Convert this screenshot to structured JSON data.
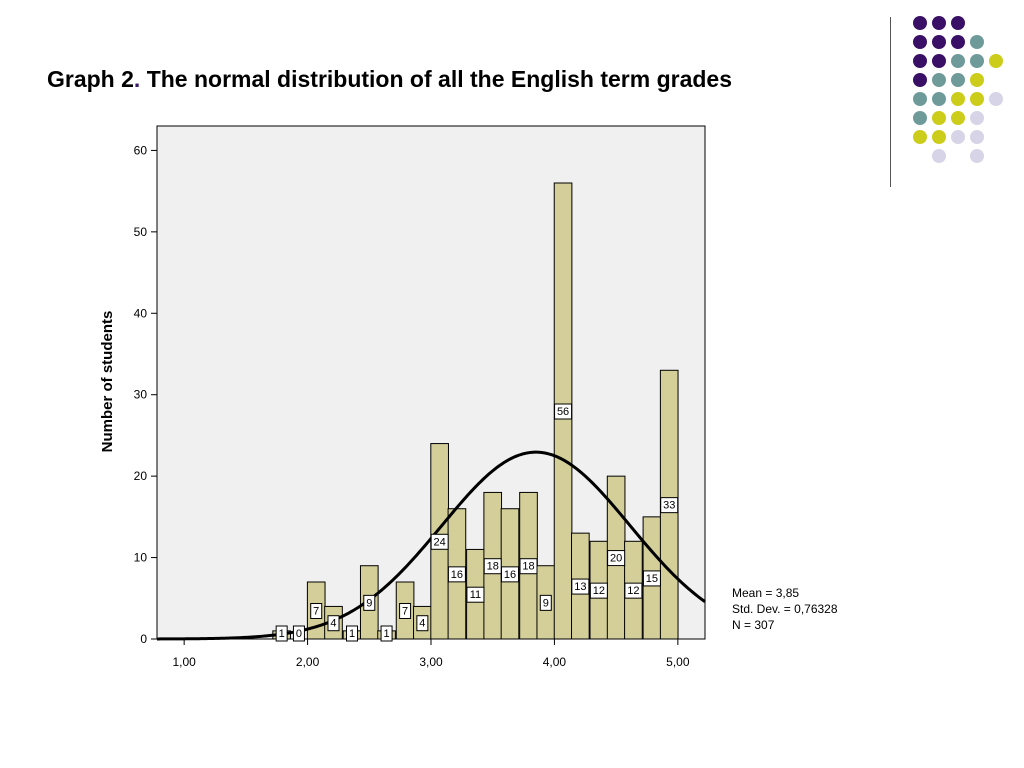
{
  "title": {
    "prefix": "Graph 2",
    "dot": ".",
    "text": " The normal distribution of all the English term grades"
  },
  "decoration": {
    "colors": {
      "purple": "#3a0f66",
      "teal": "#6f9a9a",
      "yellow": "#cccc1a",
      "lavender": "#d6d4e6"
    },
    "dot_grid": [
      [
        "purple",
        "purple",
        "purple",
        null,
        null
      ],
      [
        "purple",
        "purple",
        "purple",
        "teal",
        null
      ],
      [
        "purple",
        "purple",
        "teal",
        "teal",
        "yellow"
      ],
      [
        "purple",
        "teal",
        "teal",
        "yellow",
        null
      ],
      [
        "teal",
        "teal",
        "yellow",
        "yellow",
        "lavender"
      ],
      [
        "teal",
        "yellow",
        "yellow",
        "lavender",
        null
      ],
      [
        "yellow",
        "yellow",
        "lavender",
        "lavender",
        null
      ],
      [
        null,
        "lavender",
        null,
        "lavender",
        null
      ]
    ]
  },
  "chart_data": {
    "type": "bar",
    "subtype": "histogram with normal curve",
    "ylabel": "Number of students",
    "xlabel": "",
    "xlim": [
      0.78,
      5.22
    ],
    "ylim": [
      0,
      63
    ],
    "x_ticks": [
      {
        "value": 1,
        "label": "1,00"
      },
      {
        "value": 2,
        "label": "2,00"
      },
      {
        "value": 3,
        "label": "3,00"
      },
      {
        "value": 4,
        "label": "4,00"
      },
      {
        "value": 5,
        "label": "5,00"
      }
    ],
    "y_ticks": [
      {
        "value": 0,
        "label": "0"
      },
      {
        "value": 10,
        "label": "10"
      },
      {
        "value": 20,
        "label": "20"
      },
      {
        "value": 30,
        "label": "30"
      },
      {
        "value": 40,
        "label": "40"
      },
      {
        "value": 50,
        "label": "50"
      },
      {
        "value": 60,
        "label": "60"
      }
    ],
    "bin_width": 0.143,
    "bins": [
      {
        "x": 1.79,
        "value": 1,
        "label": "1"
      },
      {
        "x": 1.93,
        "value": 0,
        "label": "0"
      },
      {
        "x": 2.07,
        "value": 7,
        "label": "7"
      },
      {
        "x": 2.21,
        "value": 4,
        "label": "4"
      },
      {
        "x": 2.36,
        "value": 1,
        "label": "1"
      },
      {
        "x": 2.5,
        "value": 9,
        "label": "9"
      },
      {
        "x": 2.64,
        "value": 1,
        "label": "1"
      },
      {
        "x": 2.79,
        "value": 7,
        "label": "7"
      },
      {
        "x": 2.93,
        "value": 4,
        "label": "4"
      },
      {
        "x": 3.07,
        "value": 24,
        "label": "24"
      },
      {
        "x": 3.21,
        "value": 16,
        "label": "16"
      },
      {
        "x": 3.36,
        "value": 11,
        "label": "11"
      },
      {
        "x": 3.5,
        "value": 18,
        "label": "18"
      },
      {
        "x": 3.64,
        "value": 16,
        "label": "16"
      },
      {
        "x": 3.79,
        "value": 18,
        "label": "18"
      },
      {
        "x": 3.93,
        "value": 9,
        "label": "9"
      },
      {
        "x": 4.07,
        "value": 56,
        "label": "56"
      },
      {
        "x": 4.21,
        "value": 13,
        "label": "13"
      },
      {
        "x": 4.36,
        "value": 12,
        "label": "12"
      },
      {
        "x": 4.5,
        "value": 20,
        "label": "20"
      },
      {
        "x": 4.64,
        "value": 12,
        "label": "12"
      },
      {
        "x": 4.79,
        "value": 15,
        "label": "15"
      },
      {
        "x": 4.93,
        "value": 33,
        "label": "33"
      }
    ],
    "normal_curve": {
      "mean": 3.85,
      "sd": 0.76328,
      "n": 307
    },
    "stats_text": [
      "Mean = 3,85",
      "Std. Dev. = 0,76328",
      "N = 307"
    ],
    "colors": {
      "bar_fill": "#d4cf98",
      "bar_stroke": "#000000",
      "plot_bg": "#f0f0f0",
      "curve": "#000000"
    },
    "grid": false,
    "legend": "none"
  }
}
